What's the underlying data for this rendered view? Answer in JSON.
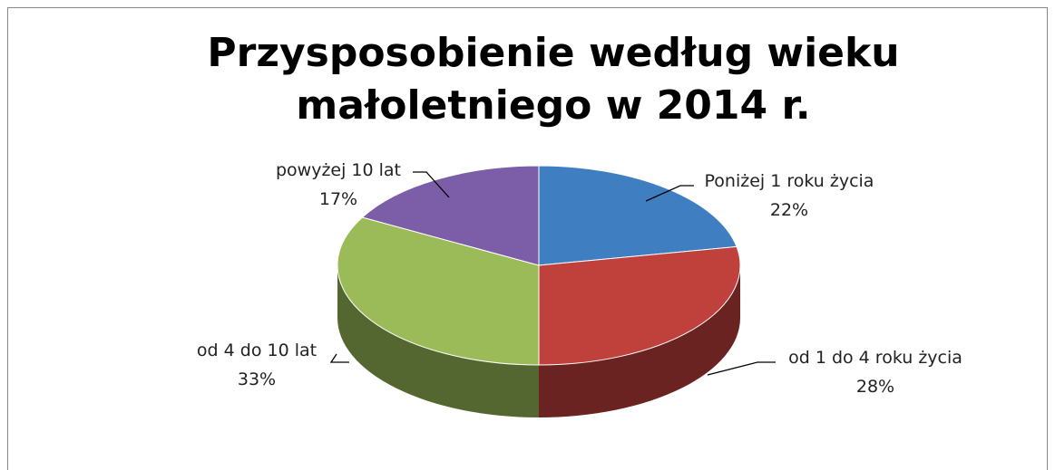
{
  "chart_data": {
    "type": "pie",
    "title": "Przysposobienie według wieku małoletniego w 2014 r.",
    "categories": [
      "Poniżej 1 roku życia",
      "od 1 do 4 roku życia",
      "od 4 do 10 lat",
      "powyżej 10 lat"
    ],
    "values": [
      22,
      28,
      33,
      17
    ],
    "value_labels": [
      "22%",
      "28%",
      "33%",
      "17%"
    ],
    "colors": [
      "#3f7fc1",
      "#c0403c",
      "#9bbb59",
      "#7b5ea7"
    ]
  }
}
